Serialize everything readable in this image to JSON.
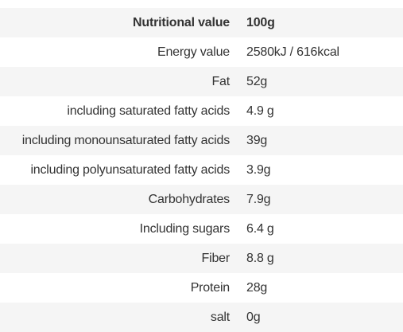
{
  "table": {
    "header": {
      "label": "Nutritional value",
      "value": "100g"
    },
    "rows": [
      {
        "label": "Energy value",
        "value": "2580kJ / 616kcal"
      },
      {
        "label": "Fat",
        "value": "52g"
      },
      {
        "label": "including saturated fatty acids",
        "value": "4.9 g"
      },
      {
        "label": "including monounsaturated fatty acids",
        "value": "39g"
      },
      {
        "label": "including polyunsaturated fatty acids",
        "value": "3.9g"
      },
      {
        "label": "Carbohydrates",
        "value": "7.9g"
      },
      {
        "label": "Including sugars",
        "value": "6.4 g"
      },
      {
        "label": "Fiber",
        "value": "8.8 g"
      },
      {
        "label": "Protein",
        "value": "28g"
      },
      {
        "label": "salt",
        "value": "0g"
      }
    ]
  },
  "colors": {
    "text": "#333333",
    "shaded_row": "#f5f5f5",
    "background": "#ffffff"
  }
}
